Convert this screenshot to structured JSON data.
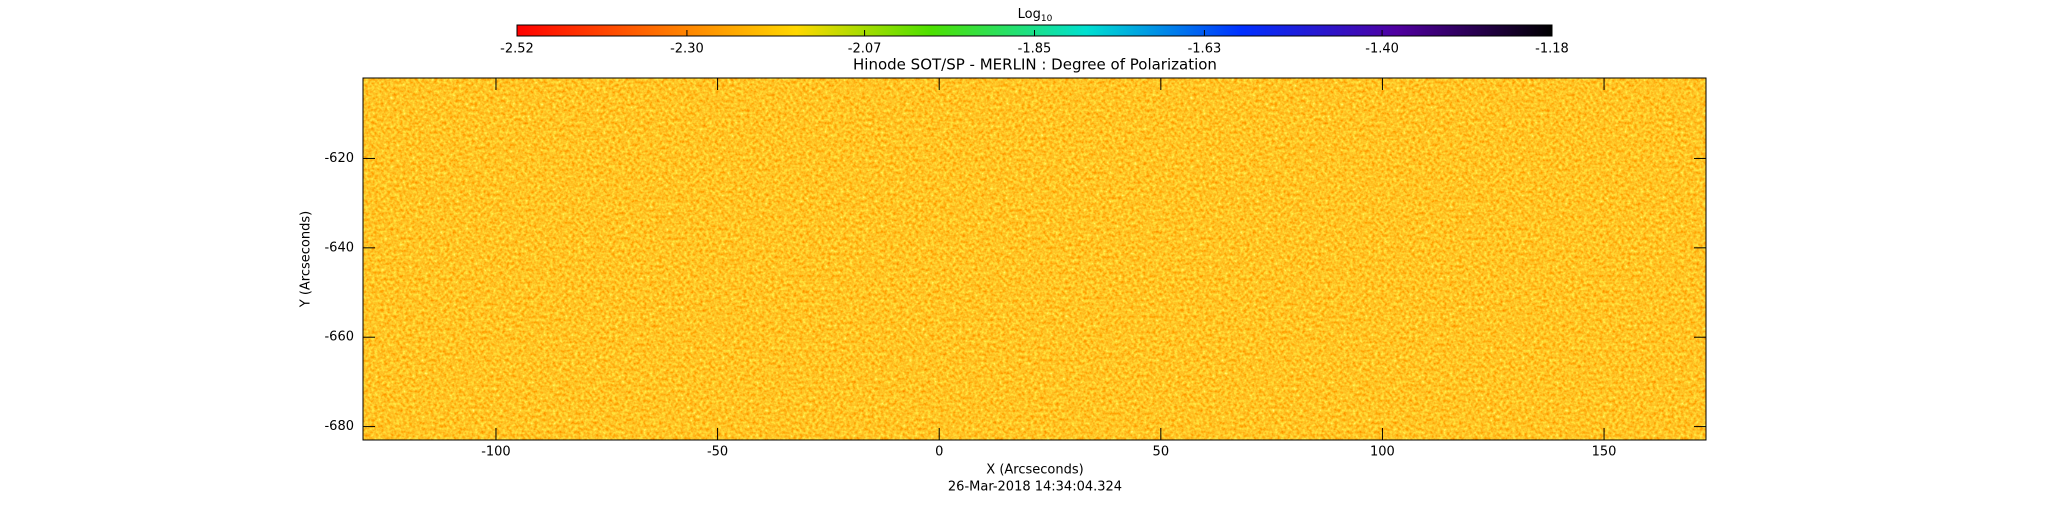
{
  "chart_data": {
    "type": "heatmap",
    "title": "Hinode SOT/SP - MERLIN : Degree of Polarization",
    "colorbar_label": "Log",
    "colorbar_label_subscript": "10",
    "clim": [
      -2.52,
      -1.18
    ],
    "cticks": [
      -2.52,
      {
        "value": -2.3,
        "label": "-2.30"
      },
      -2.07,
      -1.85,
      -1.63,
      {
        "value": -1.4,
        "label": "-1.40"
      },
      -1.18
    ],
    "xlabel": "X (Arcseconds)",
    "ylabel": "Y (Arcseconds)",
    "xlim": [
      -130,
      173
    ],
    "xticks": [
      -100,
      -50,
      0,
      50,
      100,
      150
    ],
    "ylim": [
      -683,
      -602
    ],
    "yticks": [
      -680,
      -660,
      -640,
      -620
    ],
    "footnote": "26-Mar-2018 14:34:04.324"
  }
}
